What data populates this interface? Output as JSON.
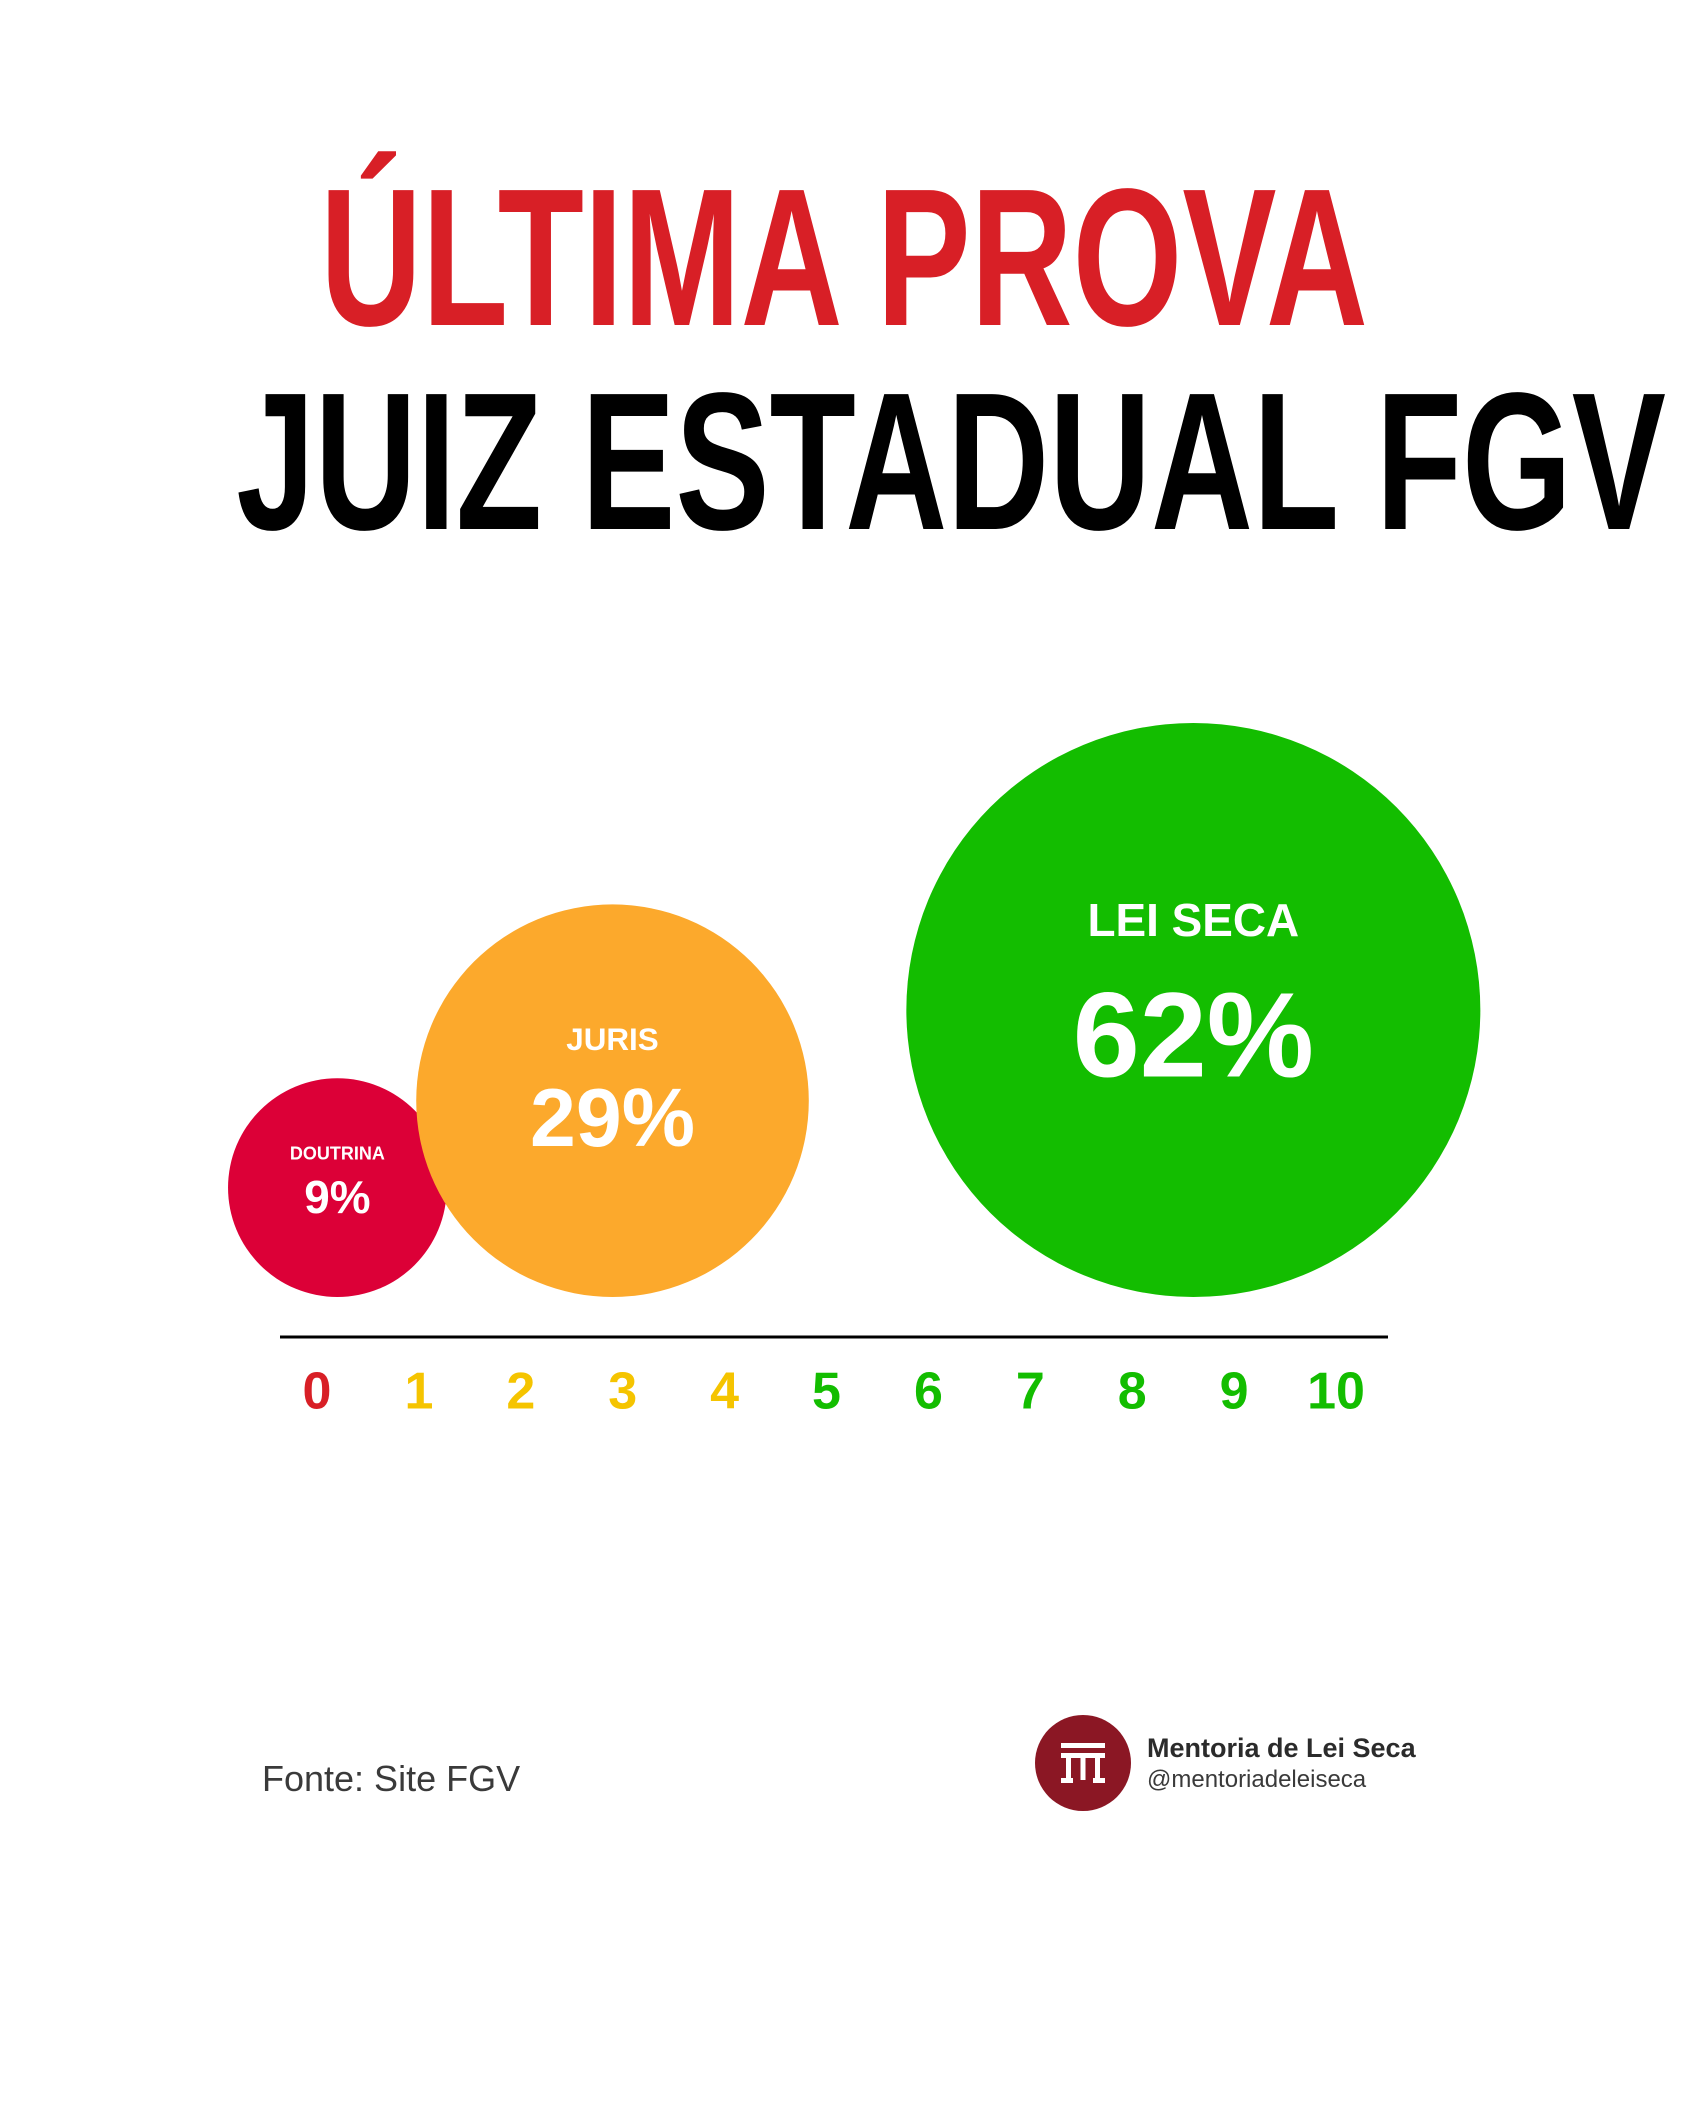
{
  "title": {
    "line1": "ÚLTIMA PROVA",
    "line2": "JUIZ ESTADUAL FGV"
  },
  "chart_data": {
    "type": "bubble",
    "xlim": [
      0,
      10
    ],
    "x_ticks": [
      "0",
      "1",
      "2",
      "3",
      "4",
      "5",
      "6",
      "7",
      "8",
      "9",
      "10"
    ],
    "x_tick_colors": [
      "#d81f26",
      "#f5c400",
      "#f5c400",
      "#f5c400",
      "#f5c400",
      "#13bd00",
      "#13bd00",
      "#13bd00",
      "#13bd00",
      "#13bd00",
      "#13bd00"
    ],
    "points": [
      {
        "label": "DOUTRINA",
        "value": 9,
        "value_text": "9%",
        "x": 0.2,
        "color": "#dc0037"
      },
      {
        "label": "JURIS",
        "value": 29,
        "value_text": "29%",
        "x": 2.9,
        "color": "#fca92c"
      },
      {
        "label": "LEI SECA",
        "value": 62,
        "value_text": "62%",
        "x": 8.6,
        "color": "#13bd00"
      }
    ],
    "axis_color": "#000000"
  },
  "source": "Fonte: Site FGV",
  "brand": {
    "name": "Mentoria de Lei Seca",
    "handle": "@mentoriadeleiseca",
    "logo_color": "#8b1724",
    "logo_icon": "columns-monogram-icon"
  }
}
